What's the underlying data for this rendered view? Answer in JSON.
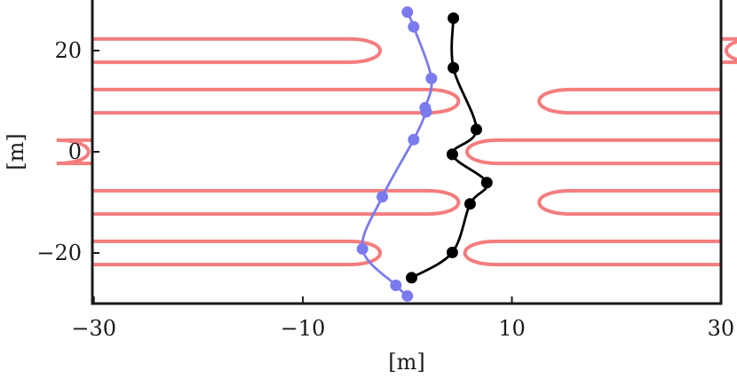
{
  "chart_data": {
    "type": "line",
    "xlabel": "[m]",
    "ylabel": "[m]",
    "xlim": [
      -30,
      30
    ],
    "ylim": [
      -30,
      30
    ],
    "x_ticks": [
      "−30",
      "−10",
      "10",
      "30"
    ],
    "x_tick_values": [
      -30,
      -10,
      10,
      30
    ],
    "y_ticks": [
      "20",
      "0",
      "−20"
    ],
    "y_tick_values": [
      20,
      0,
      -20
    ],
    "grid": false,
    "colors": {
      "lanes": "#f47d7d",
      "blue": "#7b7bef",
      "black": "#000000",
      "axis": "#1a1a1a"
    },
    "lanes": [
      {
        "side": "left",
        "y_center": 20,
        "y_half_width": 2.3,
        "tip_x": -2.1
      },
      {
        "side": "right",
        "y_center": 10,
        "y_half_width": 2.3,
        "tip_x": 12.1
      },
      {
        "side": "right",
        "y_center": 0,
        "y_half_width": 2.3,
        "tip_x": 5.2
      },
      {
        "side": "right",
        "y_center": -10,
        "y_half_width": 2.3,
        "tip_x": 12.1
      },
      {
        "side": "left",
        "y_center": -20,
        "y_half_width": 2.3,
        "tip_x": -2.1
      },
      {
        "side": "right",
        "y_center": 20,
        "y_half_width": 2.3,
        "tip_x": 30
      },
      {
        "side": "left",
        "y_center": 10,
        "y_half_width": 2.3,
        "tip_x": 5.4
      },
      {
        "side": "left",
        "y_center": 0,
        "y_half_width": 2.3,
        "tip_x": -30
      },
      {
        "side": "left",
        "y_center": -10,
        "y_half_width": 2.3,
        "tip_x": 5.4
      },
      {
        "side": "right",
        "y_center": -20,
        "y_half_width": 2.3,
        "tip_x": 5.0
      }
    ],
    "series": [
      {
        "color": "#7b7bef",
        "points": [
          [
            0,
            27.6
          ],
          [
            0.6,
            24.7
          ],
          [
            2.3,
            14.5
          ],
          [
            1.7,
            8.7
          ],
          [
            1.8,
            7.9
          ],
          [
            0.6,
            2.4
          ],
          [
            -2.4,
            -8.9
          ],
          [
            -4.3,
            -19.2
          ],
          [
            -1.1,
            -26.4
          ],
          [
            0,
            -28.5
          ]
        ]
      },
      {
        "color": "#000000",
        "points": [
          [
            4.4,
            26.4
          ],
          [
            4.4,
            16.6
          ],
          [
            6.6,
            4.4
          ],
          [
            4.3,
            -0.5
          ],
          [
            7.6,
            -6.1
          ],
          [
            6.0,
            -10.3
          ],
          [
            4.3,
            -19.9
          ],
          [
            0.4,
            -24.9
          ]
        ]
      }
    ]
  }
}
